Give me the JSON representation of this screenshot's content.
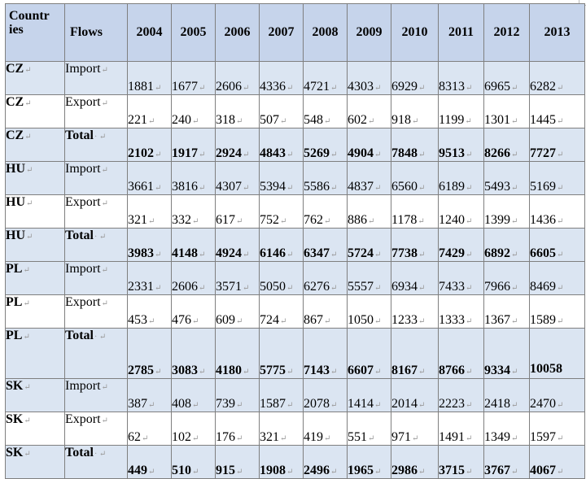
{
  "table": {
    "headers": {
      "country": "Countr ies",
      "flows": "Flows",
      "years": [
        "2004",
        "2005",
        "2006",
        "2007",
        "2008",
        "2009",
        "2010",
        "2011",
        "2012",
        "2013"
      ]
    },
    "rows": [
      {
        "country": "CZ",
        "flow": "Import",
        "total": false,
        "values": [
          "1881",
          "1677",
          "2606",
          "4336",
          "4721",
          "4303",
          "6929",
          "8313",
          "6965",
          "6282"
        ]
      },
      {
        "country": "CZ",
        "flow": "Export",
        "total": false,
        "values": [
          "221",
          "240",
          "318",
          "507",
          "548",
          "602",
          "918",
          "1199",
          "1301",
          "1445"
        ]
      },
      {
        "country": "CZ",
        "flow": "Total",
        "total": true,
        "values": [
          "2102",
          "1917",
          "2924",
          "4843",
          "5269",
          "4904",
          "7848",
          "9513",
          "8266",
          "7727"
        ]
      },
      {
        "country": "HU",
        "flow": "Import",
        "total": false,
        "values": [
          "3661",
          "3816",
          "4307",
          "5394",
          "5586",
          "4837",
          "6560",
          "6189",
          "5493",
          "5169"
        ]
      },
      {
        "country": "HU",
        "flow": "Export",
        "total": false,
        "values": [
          "321",
          "332",
          "617",
          "752",
          "762",
          "886",
          "1178",
          "1240",
          "1399",
          "1436"
        ]
      },
      {
        "country": "HU",
        "flow": "Total",
        "total": true,
        "values": [
          "3983",
          "4148",
          "4924",
          "6146",
          "6347",
          "5724",
          "7738",
          "7429",
          "6892",
          "6605"
        ]
      },
      {
        "country": "PL",
        "flow": "Import",
        "total": false,
        "values": [
          "2331",
          "2606",
          "3571",
          "5050",
          "6276",
          "5557",
          "6934",
          "7433",
          "7966",
          "8469"
        ]
      },
      {
        "country": "PL",
        "flow": "Export",
        "total": false,
        "values": [
          "453",
          "476",
          "609",
          "724",
          "867",
          "1050",
          "1233",
          "1333",
          "1367",
          "1589"
        ]
      },
      {
        "country": "PL",
        "flow": "Total",
        "total": true,
        "values": [
          "2785",
          "3083",
          "4180",
          "5775",
          "7143",
          "6607",
          "8167",
          "8766",
          "9334",
          "10058"
        ]
      },
      {
        "country": "SK",
        "flow": "Import",
        "total": false,
        "values": [
          "387",
          "408",
          "739",
          "1587",
          "2078",
          "1414",
          "2014",
          "2223",
          "2418",
          "2470"
        ]
      },
      {
        "country": "SK",
        "flow": "Export",
        "total": false,
        "values": [
          "62",
          "102",
          "176",
          "321",
          "419",
          "551",
          "971",
          "1491",
          "1349",
          "1597"
        ]
      },
      {
        "country": "SK",
        "flow": "Total",
        "total": true,
        "values": [
          "449",
          "510",
          "915",
          "1908",
          "2496",
          "1965",
          "2986",
          "3715",
          "3767",
          "4067"
        ]
      }
    ]
  },
  "colors": {
    "header_fill": "#c6d4eb",
    "shaded_row_fill": "#dbe5f2",
    "plain_row_fill": "#ffffff",
    "border": "#7f7f7f"
  }
}
